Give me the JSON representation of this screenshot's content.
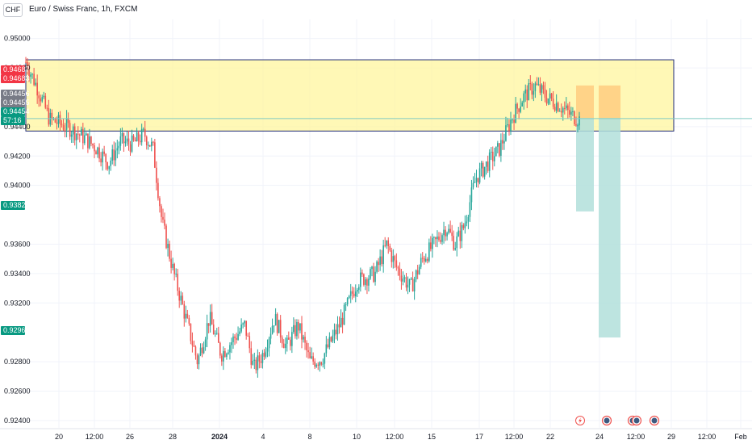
{
  "header": {
    "currency_button": "CHF",
    "title": "Euro / Swiss Franc, 1h, FXCM"
  },
  "colors": {
    "up": "#26a69a",
    "down": "#ef5350",
    "zone_fill": "#fff59d",
    "zone_border": "#1e2a78",
    "target_fill": "#b2dfdb",
    "entry_fill": "#ffcc80",
    "price_line": "#80cbc4"
  },
  "price_tags": [
    {
      "label": "0.94687",
      "value": 0.94687,
      "color": "#f23645"
    },
    {
      "label": "0.94683",
      "value": 0.94683,
      "color": "#f23645"
    },
    {
      "label": "0.94456",
      "value": 0.94456,
      "color": "#787b86"
    },
    {
      "label": "0.94455",
      "value": 0.94455,
      "color": "#787b86"
    },
    {
      "label": "0.94454",
      "value": 0.94454,
      "color": "#089981"
    },
    {
      "label": "57:16",
      "value": 0.9433,
      "color": "#089981"
    },
    {
      "label": "0.93823",
      "value": 0.93823,
      "color": "#089981"
    },
    {
      "label": "0.92965",
      "value": 0.92965,
      "color": "#089981"
    }
  ],
  "event_markers": [
    "lightning-icon",
    "earnings-icon",
    "earnings-icon",
    "earnings-icon",
    "earnings-icon"
  ],
  "chart_data": {
    "type": "candlestick",
    "ylim": [
      0.9235,
      0.9513
    ],
    "y_ticks": [
      "0.95000",
      "0.94800",
      "0.94400",
      "0.94200",
      "0.94000",
      "0.93600",
      "0.93400",
      "0.93200",
      "0.92800",
      "0.92600",
      "0.92400"
    ],
    "x_ticks": [
      "20",
      "12:00",
      "26",
      "28",
      "2024",
      "4",
      "8",
      "10",
      "12:00",
      "15",
      "17",
      "12:00",
      "22",
      "24",
      "12:00",
      "29",
      "12:00",
      "Feb"
    ],
    "zone": {
      "low": 0.9437,
      "high": 0.94855
    },
    "current_price": 0.94455,
    "projections": [
      {
        "entry": 0.94458,
        "entry_top": 0.9468,
        "target": 0.93823
      },
      {
        "entry": 0.94458,
        "entry_top": 0.9468,
        "target": 0.92965
      }
    ],
    "close_path": [
      [
        0,
        0.9484
      ],
      [
        0.02,
        0.9466
      ],
      [
        0.04,
        0.9445
      ],
      [
        0.07,
        0.944
      ],
      [
        0.1,
        0.9432
      ],
      [
        0.12,
        0.9425
      ],
      [
        0.14,
        0.9415
      ],
      [
        0.16,
        0.943
      ],
      [
        0.18,
        0.9428
      ],
      [
        0.2,
        0.9435
      ],
      [
        0.215,
        0.9425
      ],
      [
        0.23,
        0.9375
      ],
      [
        0.25,
        0.934
      ],
      [
        0.27,
        0.931
      ],
      [
        0.29,
        0.928
      ],
      [
        0.31,
        0.931
      ],
      [
        0.33,
        0.9285
      ],
      [
        0.35,
        0.9295
      ],
      [
        0.37,
        0.9305
      ],
      [
        0.385,
        0.9275
      ],
      [
        0.4,
        0.9285
      ],
      [
        0.42,
        0.931
      ],
      [
        0.44,
        0.929
      ],
      [
        0.46,
        0.9305
      ],
      [
        0.48,
        0.928
      ],
      [
        0.5,
        0.9282
      ],
      [
        0.53,
        0.9305
      ],
      [
        0.56,
        0.9335
      ],
      [
        0.59,
        0.934
      ],
      [
        0.61,
        0.936
      ],
      [
        0.625,
        0.9345
      ],
      [
        0.65,
        0.933
      ],
      [
        0.67,
        0.935
      ],
      [
        0.69,
        0.936
      ],
      [
        0.71,
        0.9372
      ],
      [
        0.725,
        0.936
      ],
      [
        0.74,
        0.9372
      ],
      [
        0.76,
        0.9405
      ],
      [
        0.78,
        0.9415
      ],
      [
        0.8,
        0.9425
      ],
      [
        0.82,
        0.9445
      ],
      [
        0.84,
        0.946
      ],
      [
        0.86,
        0.9468
      ],
      [
        0.88,
        0.946
      ],
      [
        0.9,
        0.9455
      ],
      [
        0.92,
        0.9448
      ],
      [
        0.935,
        0.9445
      ]
    ]
  }
}
